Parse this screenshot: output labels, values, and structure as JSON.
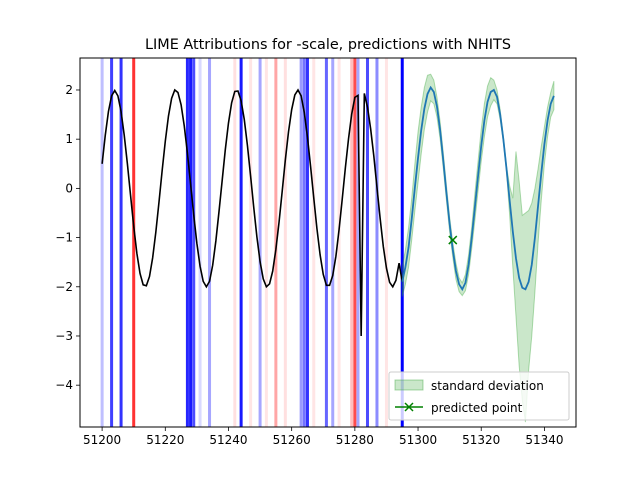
{
  "chart_data": {
    "type": "line",
    "title": "LIME Attributions for -scale, predictions with NHITS",
    "xlabel": "",
    "ylabel": "",
    "xlim": [
      51193,
      51350
    ],
    "ylim": [
      -4.85,
      2.65
    ],
    "xticks": [
      51200,
      51220,
      51240,
      51260,
      51280,
      51300,
      51320,
      51340
    ],
    "yticks": [
      2,
      1,
      0,
      -1,
      -2,
      -3,
      -4
    ],
    "ytick_labels": [
      "2",
      "1",
      "0",
      "−1",
      "−2",
      "−3",
      "−4"
    ],
    "grid": false,
    "legend_position": "lower-right",
    "legend": [
      {
        "key": "std",
        "label": "standard deviation"
      },
      {
        "key": "point",
        "label": "predicted point"
      }
    ],
    "colors": {
      "history": "#000000",
      "forecast": "#1f77b4",
      "band": "#2ca02c",
      "predicted_point": "#008000",
      "positive": "#0000ff",
      "negative": "#ff0000",
      "boundary": "#0000ff"
    },
    "history": {
      "x": [
        51200,
        51201,
        51202,
        51203,
        51204,
        51205,
        51206,
        51207,
        51208,
        51209,
        51210,
        51211,
        51212,
        51213,
        51214,
        51215,
        51216,
        51217,
        51218,
        51219,
        51220,
        51221,
        51222,
        51223,
        51224,
        51225,
        51226,
        51227,
        51228,
        51229,
        51230,
        51231,
        51232,
        51233,
        51234,
        51235,
        51236,
        51237,
        51238,
        51239,
        51240,
        51241,
        51242,
        51243,
        51244,
        51245,
        51246,
        51247,
        51248,
        51249,
        51250,
        51251,
        51252,
        51253,
        51254,
        51255,
        51256,
        51257,
        51258,
        51259,
        51260,
        51261,
        51262,
        51263,
        51264,
        51265,
        51266,
        51267,
        51268,
        51269,
        51270,
        51271,
        51272,
        51273,
        51274,
        51275,
        51276,
        51277,
        51278,
        51279,
        51280,
        51281,
        51282,
        51283,
        51284,
        51285,
        51286,
        51287,
        51288,
        51289,
        51290,
        51291,
        51292,
        51293,
        51294,
        51295
      ],
      "y": [
        0.5,
        1.08,
        1.56,
        1.88,
        1.99,
        1.88,
        1.56,
        1.08,
        0.5,
        -0.14,
        -0.77,
        -1.32,
        -1.73,
        -1.96,
        -1.98,
        -1.79,
        -1.41,
        -0.89,
        -0.28,
        0.36,
        0.96,
        1.47,
        1.83,
        2.0,
        1.95,
        1.7,
        1.27,
        0.72,
        0.09,
        -0.54,
        -1.12,
        -1.58,
        -1.89,
        -2.0,
        -1.89,
        -1.56,
        -1.07,
        -0.47,
        0.16,
        0.79,
        1.33,
        1.74,
        1.97,
        1.98,
        1.78,
        1.4,
        0.87,
        0.25,
        -0.39,
        -0.99,
        -1.49,
        -1.84,
        -2.0,
        -1.94,
        -1.68,
        -1.24,
        -0.69,
        -0.06,
        0.58,
        1.15,
        1.6,
        1.9,
        2.0,
        1.88,
        1.54,
        1.04,
        0.44,
        -0.2,
        -0.82,
        -1.35,
        -1.75,
        -1.97,
        -1.97,
        -1.77,
        -1.38,
        -0.84,
        -0.22,
        0.42,
        1.01,
        1.51,
        1.85,
        1.89,
        -3.0,
        1.93,
        1.65,
        1.21,
        0.66,
        0.02,
        -0.61,
        -1.18,
        -1.62,
        -1.91,
        -2.0,
        -1.87,
        -1.52,
        -1.9
      ]
    },
    "forecast": {
      "x": [
        51295,
        51296,
        51297,
        51298,
        51299,
        51300,
        51301,
        51302,
        51303,
        51304,
        51305,
        51306,
        51307,
        51308,
        51309,
        51310,
        51311,
        51312,
        51313,
        51314,
        51315,
        51316,
        51317,
        51318,
        51319,
        51320,
        51321,
        51322,
        51323,
        51324,
        51325,
        51326,
        51327,
        51328,
        51329,
        51330,
        51331,
        51332,
        51333,
        51334,
        51335,
        51336,
        51337,
        51338,
        51339,
        51340,
        51341,
        51342,
        51343
      ],
      "y": [
        -1.9,
        -1.6,
        -1.2,
        -0.62,
        0.02,
        0.62,
        1.18,
        1.62,
        1.92,
        2.05,
        1.96,
        1.66,
        1.18,
        0.56,
        -0.1,
        -0.72,
        -1.25,
        -1.68,
        -1.95,
        -2.05,
        -1.92,
        -1.55,
        -1.0,
        -0.38,
        0.25,
        0.86,
        1.38,
        1.76,
        1.96,
        2.0,
        1.86,
        1.5,
        1.0,
        0.4,
        -0.25,
        -0.88,
        -1.42,
        -1.82,
        -2.02,
        -2.05,
        -1.9,
        -1.55,
        -1.0,
        -0.35,
        0.3,
        0.9,
        1.38,
        1.72,
        1.88
      ],
      "upper": [
        -1.6,
        -1.25,
        -0.8,
        -0.2,
        0.5,
        1.15,
        1.65,
        2.05,
        2.3,
        2.32,
        2.2,
        1.85,
        1.35,
        0.72,
        0.05,
        -0.58,
        -1.1,
        -1.52,
        -1.82,
        -1.92,
        -1.75,
        -1.35,
        -0.78,
        -0.1,
        0.55,
        1.2,
        1.72,
        2.08,
        2.25,
        2.2,
        2.0,
        1.6,
        1.05,
        0.45,
        0.05,
        -0.2,
        0.75,
        0.15,
        -0.55,
        -0.5,
        -0.45,
        -0.3,
        0.0,
        0.4,
        0.85,
        1.25,
        1.65,
        1.95,
        2.18
      ],
      "lower": [
        -2.2,
        -1.95,
        -1.6,
        -1.05,
        -0.45,
        0.12,
        0.7,
        1.2,
        1.55,
        1.78,
        1.72,
        1.45,
        1.0,
        0.4,
        -0.25,
        -0.88,
        -1.4,
        -1.85,
        -2.1,
        -2.18,
        -2.08,
        -1.75,
        -1.22,
        -0.65,
        -0.05,
        0.55,
        1.05,
        1.45,
        1.68,
        1.8,
        1.72,
        1.4,
        0.95,
        0.35,
        -0.55,
        -1.6,
        -2.6,
        -3.6,
        -4.3,
        -4.75,
        -3.7,
        -3.0,
        -2.1,
        -1.1,
        -0.25,
        0.5,
        1.05,
        1.45,
        1.6
      ]
    },
    "predicted_point": {
      "x": 51311,
      "y": -1.05
    },
    "boundary_x": 51295,
    "attributions": [
      {
        "x": 51200,
        "sign": "positive",
        "alpha": 0.25
      },
      {
        "x": 51203,
        "sign": "positive",
        "alpha": 0.75
      },
      {
        "x": 51206,
        "sign": "positive",
        "alpha": 0.8
      },
      {
        "x": 51210,
        "sign": "negative",
        "alpha": 0.8
      },
      {
        "x": 51227,
        "sign": "positive",
        "alpha": 0.85
      },
      {
        "x": 51228,
        "sign": "positive",
        "alpha": 0.9
      },
      {
        "x": 51229,
        "sign": "positive",
        "alpha": 0.7
      },
      {
        "x": 51231,
        "sign": "positive",
        "alpha": 0.15
      },
      {
        "x": 51234,
        "sign": "positive",
        "alpha": 0.35
      },
      {
        "x": 51242,
        "sign": "negative",
        "alpha": 0.12
      },
      {
        "x": 51244,
        "sign": "positive",
        "alpha": 0.9
      },
      {
        "x": 51247,
        "sign": "negative",
        "alpha": 0.1
      },
      {
        "x": 51250,
        "sign": "positive",
        "alpha": 0.35
      },
      {
        "x": 51252,
        "sign": "negative",
        "alpha": 0.1
      },
      {
        "x": 51255,
        "sign": "negative",
        "alpha": 0.35
      },
      {
        "x": 51258,
        "sign": "negative",
        "alpha": 0.12
      },
      {
        "x": 51263,
        "sign": "positive",
        "alpha": 0.4
      },
      {
        "x": 51264,
        "sign": "positive",
        "alpha": 0.55
      },
      {
        "x": 51265,
        "sign": "positive",
        "alpha": 0.8
      },
      {
        "x": 51267,
        "sign": "negative",
        "alpha": 0.1
      },
      {
        "x": 51271,
        "sign": "positive",
        "alpha": 0.6
      },
      {
        "x": 51273,
        "sign": "positive",
        "alpha": 0.35
      },
      {
        "x": 51275,
        "sign": "negative",
        "alpha": 0.1
      },
      {
        "x": 51279,
        "sign": "negative",
        "alpha": 0.25
      },
      {
        "x": 51280,
        "sign": "negative",
        "alpha": 0.7
      },
      {
        "x": 51281,
        "sign": "positive",
        "alpha": 0.35
      },
      {
        "x": 51284,
        "sign": "positive",
        "alpha": 0.7
      },
      {
        "x": 51287,
        "sign": "positive",
        "alpha": 0.45
      },
      {
        "x": 51290,
        "sign": "negative",
        "alpha": 0.1
      }
    ]
  }
}
